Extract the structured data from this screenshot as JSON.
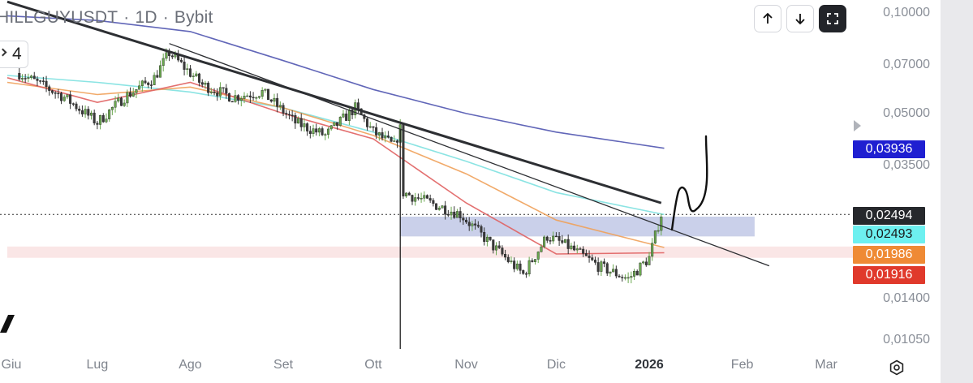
{
  "header": {
    "symbol": "HILLGUYUSDT",
    "separator": "·",
    "timeframe": "1D",
    "exchange": "Bybit",
    "indicator_count": "4"
  },
  "toolbar": {
    "up_icon": "arrow-up-icon",
    "down_icon": "arrow-down-icon",
    "fullscreen_icon": "expand-icon"
  },
  "colors": {
    "candle_up": "#6aa84f",
    "candle_down": "#333333",
    "ma_red": "#e06060",
    "ma_orange": "#f0a15a",
    "ma_cyan": "#7ee1e0",
    "ma_blue": "#5055b0",
    "zone_blue": "#b8c0e3",
    "zone_red": "#f6d6d6",
    "label_dark": "#26282c",
    "label_cyan": "#6df0f0",
    "label_orange": "#ef8a35",
    "label_red": "#e0392b",
    "label_blue": "#1f1fd1"
  },
  "chart_data": {
    "type": "line",
    "y_scale": "log",
    "y_ticks": [
      "0,10000",
      "0,07000",
      "0,05000",
      "0,03500",
      "0,01400",
      "0,01050"
    ],
    "x_ticks": [
      "Giu",
      "Lug",
      "Ago",
      "Set",
      "Ott",
      "Nov",
      "Dic",
      "2026",
      "Feb",
      "Mar"
    ],
    "price_labels": [
      {
        "text": "0,03936",
        "role": "ma_blue"
      },
      {
        "text": "0,02494",
        "role": "last_price"
      },
      {
        "text": "0,02493",
        "role": "ma_cyan"
      },
      {
        "text": "0,01986",
        "role": "ma_orange"
      },
      {
        "text": "0,01916",
        "role": "ma_red"
      }
    ],
    "series": [
      {
        "values_note_x": "dates",
        "x": [
          "2025-06-05",
          "2025-06-20",
          "2025-07-01",
          "2025-07-10",
          "2025-07-20",
          "2025-07-25",
          "2025-08-05",
          "2025-08-15",
          "2025-08-25",
          "2025-09-05",
          "2025-09-15",
          "2025-09-25",
          "2025-10-01",
          "2025-10-08",
          "2025-10-10",
          "2025-10-11",
          "2025-10-20",
          "2025-10-30",
          "2025-11-10",
          "2025-11-20",
          "2025-11-28",
          "2025-12-05",
          "2025-12-15",
          "2025-12-25",
          "2026-01-01",
          "2026-01-05"
        ],
        "close": [
          0.066,
          0.056,
          0.047,
          0.056,
          0.064,
          0.076,
          0.061,
          0.056,
          0.058,
          0.047,
          0.043,
          0.052,
          0.044,
          0.04,
          0.045,
          0.029,
          0.027,
          0.025,
          0.02,
          0.0165,
          0.0215,
          0.02,
          0.0175,
          0.016,
          0.0185,
          0.025
        ]
      },
      {
        "x": [
          "2025-06-01",
          "2025-07-01",
          "2025-08-01",
          "2025-09-01",
          "2025-10-01",
          "2025-11-01",
          "2025-12-01",
          "2026-01-06"
        ],
        "y": [
          0.098,
          0.095,
          0.088,
          0.072,
          0.059,
          0.05,
          0.044,
          0.03936
        ]
      },
      {
        "x": [
          "2025-06-01",
          "2025-07-01",
          "2025-08-01",
          "2025-09-01",
          "2025-10-01",
          "2025-11-01",
          "2025-12-01",
          "2026-01-06"
        ],
        "y": [
          0.065,
          0.062,
          0.058,
          0.052,
          0.044,
          0.036,
          0.029,
          0.02493
        ]
      },
      {
        "x": [
          "2025-06-01",
          "2025-07-01",
          "2025-08-01",
          "2025-09-01",
          "2025-10-01",
          "2025-11-01",
          "2025-12-01",
          "2026-01-06"
        ],
        "y": [
          0.062,
          0.057,
          0.06,
          0.052,
          0.043,
          0.033,
          0.024,
          0.01986
        ]
      },
      {
        "x": [
          "2025-06-01",
          "2025-07-01",
          "2025-08-01",
          "2025-09-01",
          "2025-10-01",
          "2025-11-01",
          "2025-12-01",
          "2026-01-06"
        ],
        "y": [
          0.064,
          0.054,
          0.062,
          0.05,
          0.042,
          0.027,
          0.019,
          0.01916
        ]
      }
    ],
    "zones": [
      {
        "name": "blue_zone",
        "y_top": 0.0245,
        "y_bottom": 0.0215,
        "x_start": "2025-10-10",
        "x_end": "2026-02-05"
      },
      {
        "name": "red_zone",
        "y_top": 0.02,
        "y_bottom": 0.0185,
        "x_start": "2025-06-01",
        "x_end": "2026-03-10"
      }
    ],
    "trendlines": [
      {
        "x": [
          "2025-06-01",
          "2026-01-05"
        ],
        "y": [
          0.108,
          0.027
        ],
        "weight": "thick"
      },
      {
        "x": [
          "2025-07-25",
          "2026-02-10"
        ],
        "y": [
          0.081,
          0.0175
        ],
        "weight": "thin"
      }
    ],
    "last_price_line": 0.02494,
    "drawing": "hand-drawn projection curve"
  }
}
